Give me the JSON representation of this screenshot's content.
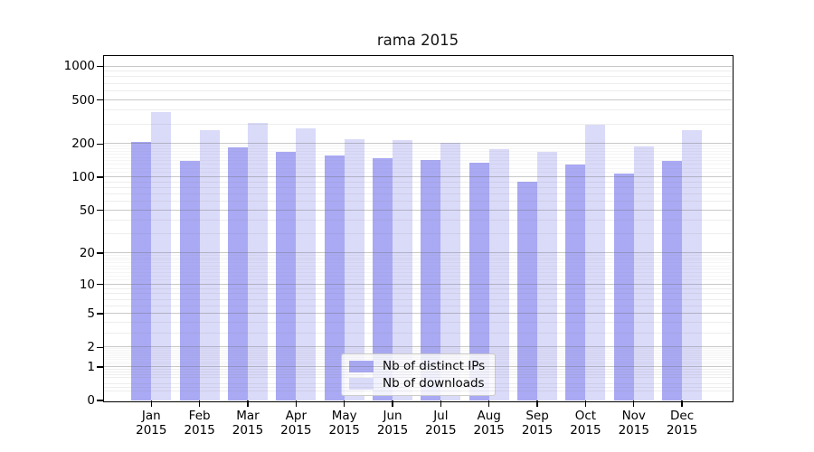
{
  "chart_data": {
    "type": "bar",
    "title": "rama 2015",
    "categories": [
      "Jan 2015",
      "Feb 2015",
      "Mar 2015",
      "Apr 2015",
      "May 2015",
      "Jun 2015",
      "Jul 2015",
      "Aug 2015",
      "Sep 2015",
      "Oct 2015",
      "Nov 2015",
      "Dec 2015"
    ],
    "x_axis": {
      "months": [
        "Jan",
        "Feb",
        "Mar",
        "Apr",
        "May",
        "Jun",
        "Jul",
        "Aug",
        "Sep",
        "Oct",
        "Nov",
        "Dec"
      ],
      "year": "2015"
    },
    "series": [
      {
        "name": "Nb of distinct IPs",
        "color": "#a9a9f4",
        "values": [
          210,
          142,
          188,
          170,
          158,
          148,
          144,
          136,
          92,
          130,
          108,
          142
        ]
      },
      {
        "name": "Nb of downloads",
        "color": "#dadaf9",
        "values": [
          385,
          265,
          310,
          278,
          220,
          216,
          206,
          180,
          170,
          298,
          190,
          265
        ]
      }
    ],
    "y_axis": {
      "scale": "log1p",
      "ticks": [
        0,
        1,
        2,
        5,
        10,
        20,
        50,
        100,
        200,
        500,
        1000
      ],
      "range_top": 1240
    },
    "legend": {
      "position": "inside-bottom-center"
    },
    "grid": "on",
    "colors": {
      "spine": "#000000",
      "major_grid": "#c6c6c6",
      "minor_grid": "#e8e8e8",
      "background": "#ffffff"
    }
  }
}
